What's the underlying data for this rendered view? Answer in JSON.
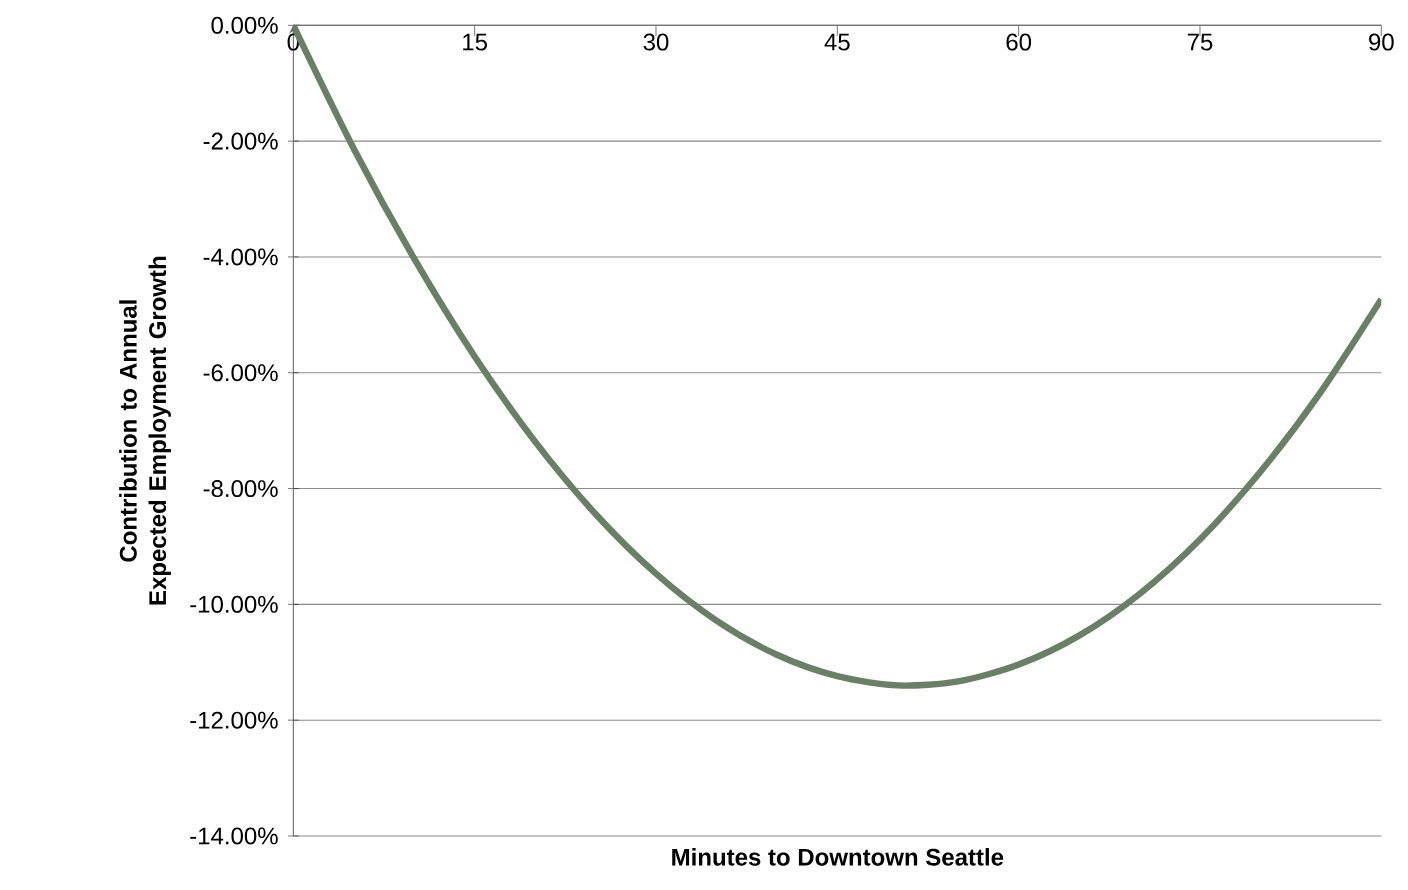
{
  "chart_data": {
    "type": "line",
    "xlabel": "Minutes to Downtown Seattle",
    "ylabel": "Contribution to Annual Expected Employment Growth",
    "x": [
      0,
      5,
      10,
      15,
      20,
      25,
      30,
      35,
      40,
      45,
      50,
      55,
      60,
      65,
      70,
      75,
      80,
      85,
      90
    ],
    "series": [
      {
        "color": "#6a8066",
        "values": [
          0,
          -2.13,
          -4.03,
          -5.72,
          -7.19,
          -8.44,
          -9.47,
          -10.28,
          -10.87,
          -11.24,
          -11.4,
          -11.33,
          -11.04,
          -10.54,
          -9.82,
          -8.88,
          -7.71,
          -6.33,
          -4.73
        ]
      }
    ],
    "xlim": [
      0,
      90
    ],
    "xticks": [
      0,
      15,
      30,
      45,
      60,
      75,
      90
    ],
    "ylim": [
      -14,
      0
    ],
    "yticks": [
      {
        "value": -14,
        "label": "-14.00%"
      },
      {
        "value": -12,
        "label": "-12.00%"
      },
      {
        "value": -10,
        "label": "-10.00%"
      },
      {
        "value": -8,
        "label": "-8.00%"
      },
      {
        "value": -6,
        "label": "-6.00%"
      },
      {
        "value": -4,
        "label": "-4.00%"
      },
      {
        "value": -2,
        "label": "-2.00%"
      },
      {
        "value": 0,
        "label": "0.00%"
      }
    ],
    "grid": "y",
    "marker": "none",
    "line_style": "solid"
  }
}
